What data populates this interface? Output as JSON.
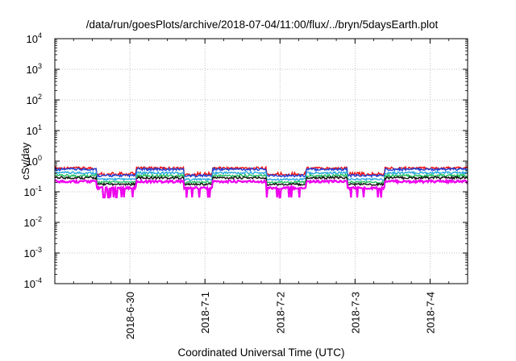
{
  "chart_data": {
    "type": "line",
    "title": "/data/run/goesPlots/archive/2018-07-04/11:00/flux/../bryn/5daysEarth.plot",
    "xlabel": "Coordinated Universal Time (UTC)",
    "ylabel": "cSv/day",
    "yscale": "log",
    "ylim": [
      0.0001,
      10000
    ],
    "xlim_days": [
      0,
      5.5
    ],
    "grid": true,
    "legend": "none",
    "y_ticks": [
      {
        "base": "10",
        "exp": "4",
        "value": 10000
      },
      {
        "base": "10",
        "exp": "3",
        "value": 1000
      },
      {
        "base": "10",
        "exp": "2",
        "value": 100
      },
      {
        "base": "10",
        "exp": "1",
        "value": 10
      },
      {
        "base": "10",
        "exp": "0",
        "value": 1
      },
      {
        "base": "10",
        "exp": "-1",
        "value": 0.1
      },
      {
        "base": "10",
        "exp": "-2",
        "value": 0.01
      },
      {
        "base": "10",
        "exp": "-3",
        "value": 0.001
      },
      {
        "base": "10",
        "exp": "-4",
        "value": 0.0001
      }
    ],
    "x_ticks": [
      {
        "label": "2018-6-30",
        "day": 1
      },
      {
        "label": "2018-7-1",
        "day": 2
      },
      {
        "label": "2018-7-2",
        "day": 3
      },
      {
        "label": "2018-7-3",
        "day": 4
      },
      {
        "label": "2018-7-4",
        "day": 5
      }
    ],
    "series": [
      {
        "color": "#ee1111",
        "level": 0.6,
        "spike": 1.08
      },
      {
        "color": "#1f3fd6",
        "level": 0.55,
        "spike": 1.0
      },
      {
        "color": "#2aa8e0",
        "level": 0.42,
        "spike": 0.95
      },
      {
        "color": "#22c060",
        "level": 0.34,
        "spike": 0.93
      },
      {
        "color": "#111111",
        "level": 0.29,
        "spike": 0.92
      },
      {
        "color": "#ee00ee",
        "level": 0.22,
        "spike": 0.45
      }
    ]
  }
}
